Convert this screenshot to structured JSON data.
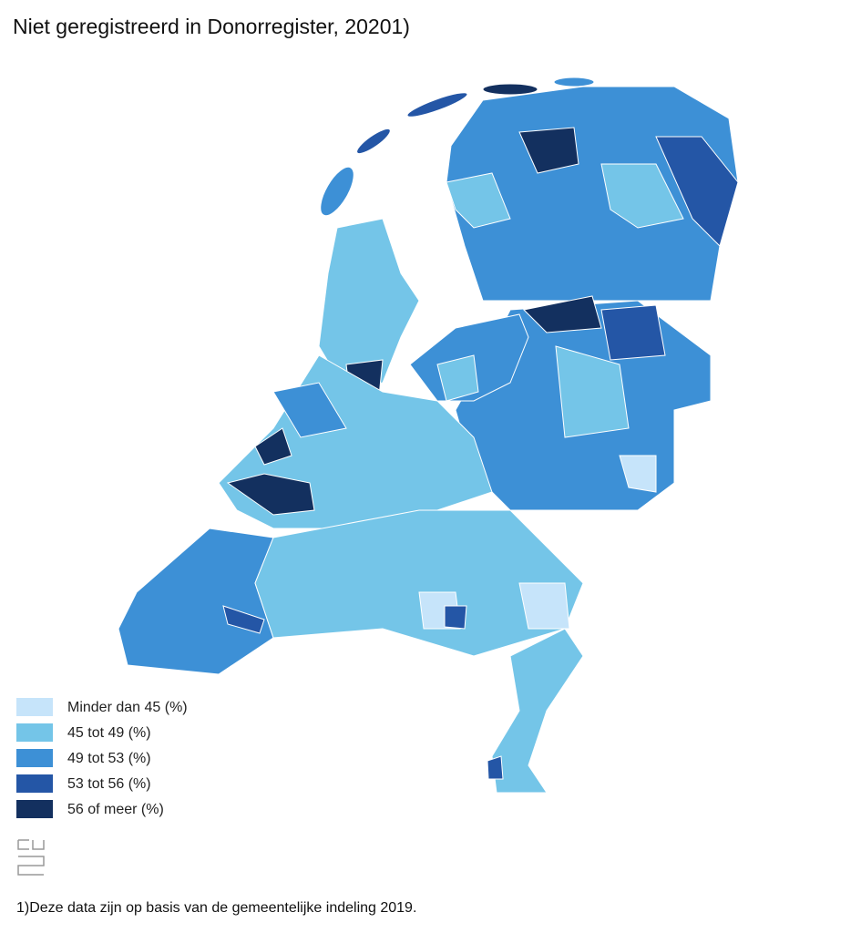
{
  "title": "Niet geregistreerd in Donorregister, 20201)",
  "legend": [
    {
      "label": "Minder dan 45 (%)",
      "color": "#c6e4fa"
    },
    {
      "label": "45 tot 49 (%)",
      "color": "#74c5e8"
    },
    {
      "label": "49 tot 53 (%)",
      "color": "#3d90d6"
    },
    {
      "label": "53 tot 56 (%)",
      "color": "#2456a6"
    },
    {
      "label": "56 of meer (%)",
      "color": "#13305f"
    }
  ],
  "footnote": "1)Deze data zijn op basis van de gemeentelijke indeling 2019."
}
